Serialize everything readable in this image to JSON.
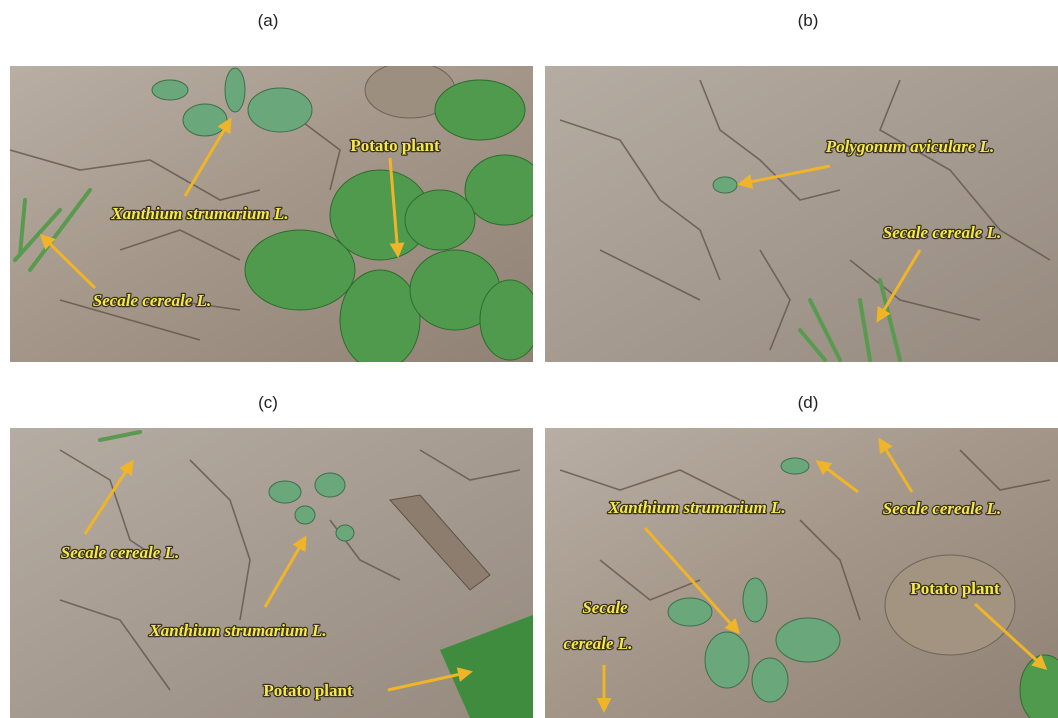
{
  "panels": [
    {
      "label": "(a)",
      "annotations": [
        {
          "text": "Potato plant"
        },
        {
          "text": "Xanthium strumarium L."
        },
        {
          "text": "Secale cereale L."
        }
      ]
    },
    {
      "label": "(b)",
      "annotations": [
        {
          "text": "Polygonum aviculare L."
        },
        {
          "text": "Secale cereale L."
        }
      ]
    },
    {
      "label": "(c)",
      "annotations": [
        {
          "text": "Secale cereale L."
        },
        {
          "text": "Xanthium strumarium L."
        },
        {
          "text": "Potato plant"
        }
      ]
    },
    {
      "label": "(d)",
      "annotations": [
        {
          "text": "Xanthium strumarium L."
        },
        {
          "text": "Secale cereale L."
        },
        {
          "text": "Potato plant"
        },
        {
          "lines": [
            "Secale",
            "cereale L."
          ]
        }
      ]
    }
  ]
}
